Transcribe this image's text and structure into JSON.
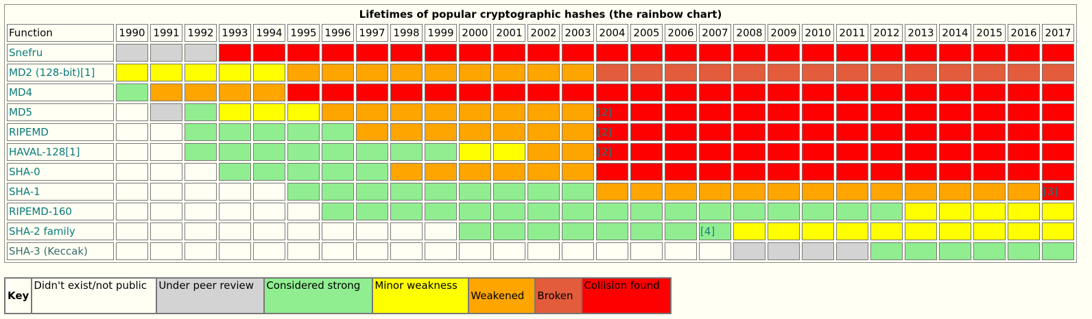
{
  "chart_data": {
    "type": "table",
    "title": "Lifetimes of popular cryptographic hashes (the rainbow chart)",
    "header_label": "Function",
    "years": [
      "1990",
      "1991",
      "1992",
      "1993",
      "1994",
      "1995",
      "1996",
      "1997",
      "1998",
      "1999",
      "2000",
      "2001",
      "2002",
      "2003",
      "2004",
      "2005",
      "2006",
      "2007",
      "2008",
      "2009",
      "2010",
      "2011",
      "2012",
      "2013",
      "2014",
      "2015",
      "2016",
      "2017"
    ],
    "status_colors": {
      "none": "#fffff4",
      "review": "#d3d3d3",
      "strong": "#90ee90",
      "minor": "#ffff00",
      "weakened": "#ffa500",
      "broken": "#e35c3c",
      "collision": "#ff0000"
    },
    "rows": [
      {
        "name": "Snefru",
        "link": true,
        "segments": [
          [
            "review",
            3
          ],
          [
            "collision",
            25
          ]
        ],
        "notes": {}
      },
      {
        "name": "MD2 (128-bit)[1]",
        "link": true,
        "segments": [
          [
            "minor",
            5
          ],
          [
            "weakened",
            9
          ],
          [
            "broken",
            14
          ]
        ],
        "notes": {}
      },
      {
        "name": "MD4",
        "link": true,
        "segments": [
          [
            "strong",
            1
          ],
          [
            "weakened",
            4
          ],
          [
            "collision",
            23
          ]
        ],
        "notes": {}
      },
      {
        "name": "MD5",
        "link": true,
        "segments": [
          [
            "none",
            1
          ],
          [
            "review",
            1
          ],
          [
            "strong",
            1
          ],
          [
            "minor",
            3
          ],
          [
            "weakened",
            8
          ],
          [
            "collision",
            14
          ]
        ],
        "notes": {
          "2004": "[2]"
        }
      },
      {
        "name": "RIPEMD",
        "link": true,
        "segments": [
          [
            "none",
            2
          ],
          [
            "strong",
            5
          ],
          [
            "weakened",
            7
          ],
          [
            "collision",
            14
          ]
        ],
        "notes": {
          "2004": "[2]"
        }
      },
      {
        "name": "HAVAL-128[1]",
        "link": true,
        "segments": [
          [
            "none",
            2
          ],
          [
            "strong",
            8
          ],
          [
            "minor",
            2
          ],
          [
            "weakened",
            2
          ],
          [
            "collision",
            14
          ]
        ],
        "notes": {
          "2004": "[2]"
        }
      },
      {
        "name": "SHA-0",
        "link": true,
        "segments": [
          [
            "none",
            3
          ],
          [
            "strong",
            5
          ],
          [
            "weakened",
            6
          ],
          [
            "collision",
            14
          ]
        ],
        "notes": {}
      },
      {
        "name": "SHA-1",
        "link": true,
        "segments": [
          [
            "none",
            5
          ],
          [
            "strong",
            9
          ],
          [
            "weakened",
            13
          ],
          [
            "collision",
            1
          ]
        ],
        "notes": {
          "2017": "[3]"
        }
      },
      {
        "name": "RIPEMD-160",
        "link": true,
        "segments": [
          [
            "none",
            6
          ],
          [
            "strong",
            17
          ],
          [
            "minor",
            5
          ]
        ],
        "notes": {}
      },
      {
        "name": "SHA-2 family",
        "link": true,
        "segments": [
          [
            "none",
            10
          ],
          [
            "strong",
            8
          ],
          [
            "minor",
            10
          ]
        ],
        "notes": {
          "2007": "[4]"
        }
      },
      {
        "name": "SHA-3 (Keccak)",
        "link": false,
        "segments": [
          [
            "none",
            18
          ],
          [
            "review",
            4
          ],
          [
            "strong",
            6
          ]
        ],
        "notes": {}
      }
    ],
    "legend": {
      "label": "Key",
      "items": [
        {
          "status": "none",
          "label": "Didn't exist/not public"
        },
        {
          "status": "review",
          "label": "Under peer review"
        },
        {
          "status": "strong",
          "label": "Considered strong"
        },
        {
          "status": "minor",
          "label": "Minor weakness"
        },
        {
          "status": "weakened",
          "label": "Weakened"
        },
        {
          "status": "broken",
          "label": "Broken"
        },
        {
          "status": "collision",
          "label": "Collision found"
        }
      ]
    }
  }
}
